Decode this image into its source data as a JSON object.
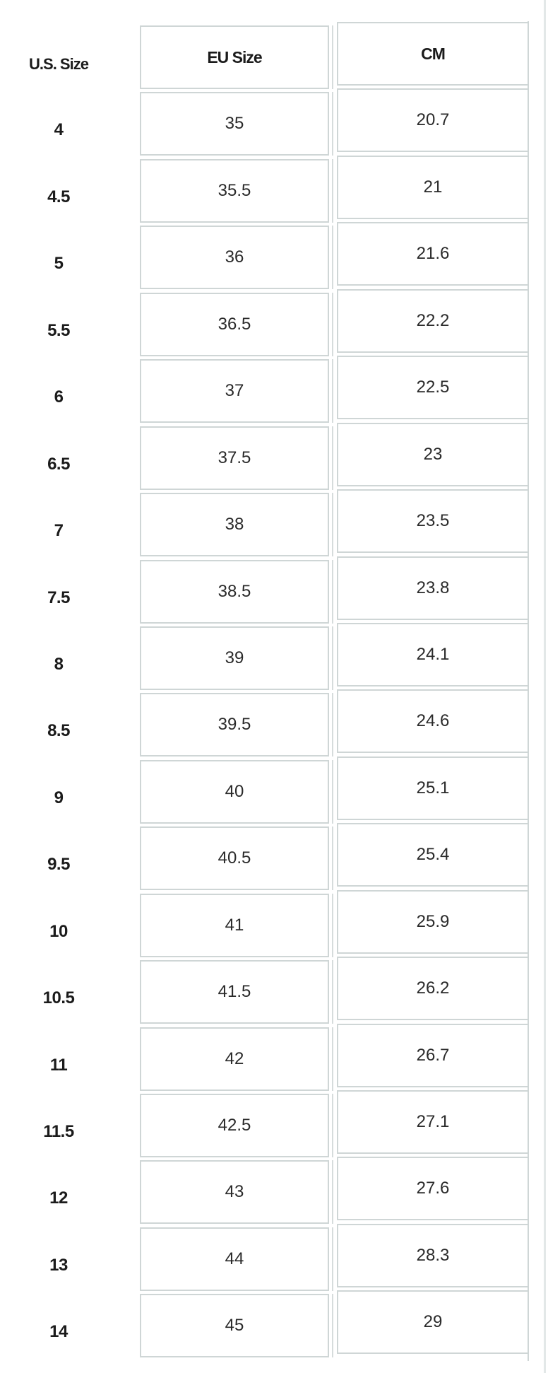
{
  "table": {
    "headers": {
      "us": "U.S. Size",
      "eu": "EU Size",
      "cm": "CM"
    },
    "rows": [
      {
        "us": "4",
        "eu": "35",
        "cm": "20.7"
      },
      {
        "us": "4.5",
        "eu": "35.5",
        "cm": "21"
      },
      {
        "us": "5",
        "eu": "36",
        "cm": "21.6"
      },
      {
        "us": "5.5",
        "eu": "36.5",
        "cm": "22.2"
      },
      {
        "us": "6",
        "eu": "37",
        "cm": "22.5"
      },
      {
        "us": "6.5",
        "eu": "37.5",
        "cm": "23"
      },
      {
        "us": "7",
        "eu": "38",
        "cm": "23.5"
      },
      {
        "us": "7.5",
        "eu": "38.5",
        "cm": "23.8"
      },
      {
        "us": "8",
        "eu": "39",
        "cm": "24.1"
      },
      {
        "us": "8.5",
        "eu": "39.5",
        "cm": "24.6"
      },
      {
        "us": "9",
        "eu": "40",
        "cm": "25.1"
      },
      {
        "us": "9.5",
        "eu": "40.5",
        "cm": "25.4"
      },
      {
        "us": "10",
        "eu": "41",
        "cm": "25.9"
      },
      {
        "us": "10.5",
        "eu": "41.5",
        "cm": "26.2"
      },
      {
        "us": "11",
        "eu": "42",
        "cm": "26.7"
      },
      {
        "us": "11.5",
        "eu": "42.5",
        "cm": "27.1"
      },
      {
        "us": "12",
        "eu": "43",
        "cm": "27.6"
      },
      {
        "us": "13",
        "eu": "44",
        "cm": "28.3"
      },
      {
        "us": "14",
        "eu": "45",
        "cm": "29"
      }
    ]
  },
  "colors": {
    "border": "#cfd6d6",
    "text": "#222222"
  }
}
